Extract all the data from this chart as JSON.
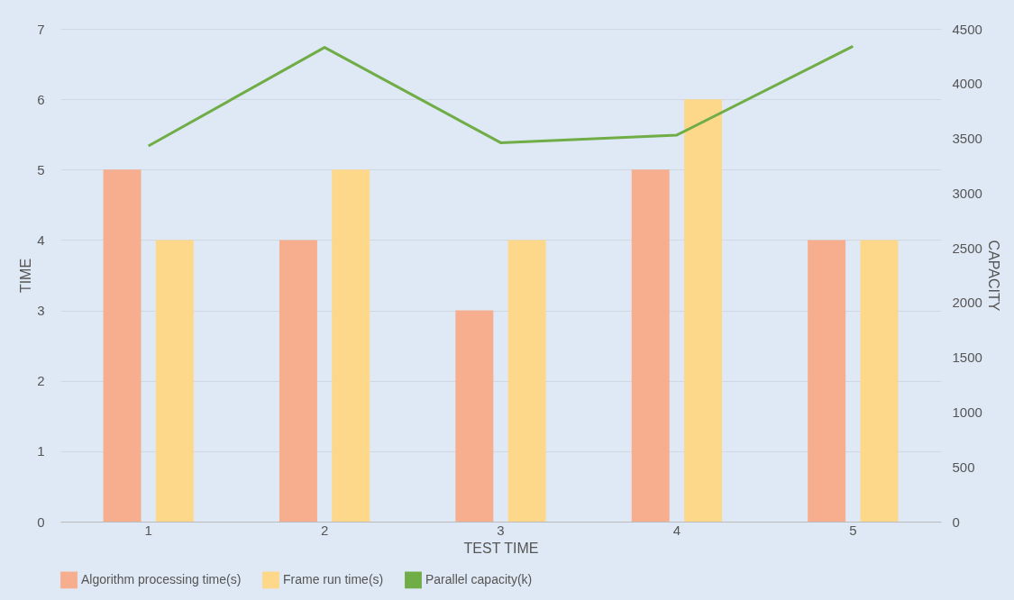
{
  "chart_data": {
    "type": "bar",
    "xlabel": "TEST TIME",
    "ylabel": "TIME",
    "y2label": "CAPACITY",
    "categories": [
      "1",
      "2",
      "3",
      "4",
      "5"
    ],
    "series": [
      {
        "name": "Algorithm processing time(s)",
        "color": "#f6ae8f",
        "values": [
          5,
          4,
          3,
          5,
          4
        ]
      },
      {
        "name": "Frame run time(s)",
        "color": "#fdd88a",
        "values": [
          4,
          5,
          4,
          6,
          4
        ]
      },
      {
        "name": "Parallel capacity(k)",
        "type": "line",
        "axis": "y2",
        "color": "#70ad47",
        "values": [
          3430,
          4330,
          3460,
          3530,
          4340
        ]
      }
    ],
    "ylim": [
      0,
      7
    ],
    "yticks": [
      0,
      1,
      2,
      3,
      4,
      5,
      6,
      7
    ],
    "y2lim": [
      0,
      4500
    ],
    "y2ticks": [
      0,
      500,
      1000,
      1500,
      2000,
      2500,
      3000,
      3500,
      4000,
      4500
    ],
    "grid": "y",
    "legend": "bottom",
    "marker": "none",
    "line_style": "solid"
  }
}
